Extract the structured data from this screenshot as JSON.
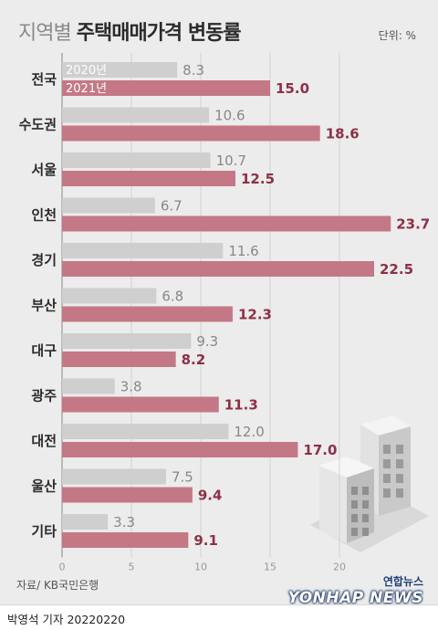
{
  "title_light": "지역별",
  "title_bold": "주택매매가격 변동률",
  "unit": "단위: %",
  "source": "자료/ KB국민은행",
  "credit": "박영석 기자  20220220",
  "logo_ko": "연합뉴스",
  "logo_en": "YONHAP NEWS",
  "colors": {
    "series_2020": "#cfcfcf",
    "series_2021": "#c47885",
    "label_2021": "#8e2f47",
    "label_2020": "#888888",
    "background": "#ececec"
  },
  "icons": [
    "building-illustration-icon",
    "yonhap-logo-icon"
  ],
  "chart_data": {
    "type": "bar",
    "orientation": "horizontal",
    "categories": [
      "전국",
      "수도권",
      "서울",
      "인천",
      "경기",
      "부산",
      "대구",
      "광주",
      "대전",
      "울산",
      "기타"
    ],
    "series": [
      {
        "name": "2020년",
        "values": [
          8.3,
          10.6,
          10.7,
          6.7,
          11.6,
          6.8,
          9.3,
          3.8,
          12.0,
          7.5,
          3.3
        ]
      },
      {
        "name": "2021년",
        "values": [
          15.0,
          18.6,
          12.5,
          23.7,
          22.5,
          12.3,
          8.2,
          11.3,
          17.0,
          9.4,
          9.1
        ]
      }
    ],
    "xlim": [
      0,
      25
    ],
    "xticks": [
      "0",
      "5",
      "10",
      "15",
      "20"
    ],
    "grid": true,
    "legend": "inside-first-bars"
  }
}
